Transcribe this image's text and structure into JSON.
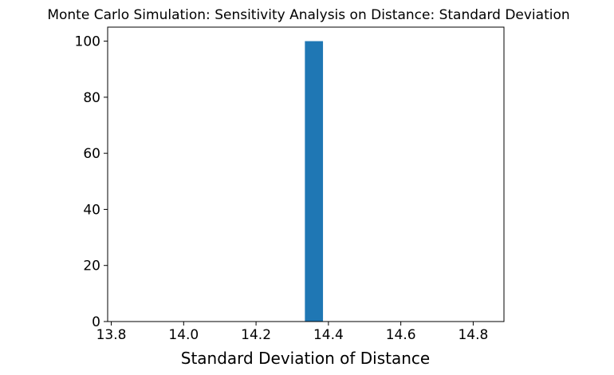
{
  "chart_data": {
    "type": "bar",
    "title": "Monte Carlo Simulation: Sensitivity Analysis on Distance: Standard Deviation",
    "xlabel": "Standard Deviation of Distance",
    "ylabel": "",
    "xlim": [
      13.79,
      14.885
    ],
    "ylim": [
      0,
      105
    ],
    "x_ticks": [
      {
        "value": 13.8,
        "label": "13.8"
      },
      {
        "value": 14.0,
        "label": "14.0"
      },
      {
        "value": 14.2,
        "label": "14.2"
      },
      {
        "value": 14.4,
        "label": "14.4"
      },
      {
        "value": 14.6,
        "label": "14.6"
      },
      {
        "value": 14.8,
        "label": "14.8"
      }
    ],
    "y_ticks": [
      {
        "value": 0,
        "label": "0"
      },
      {
        "value": 20,
        "label": "20"
      },
      {
        "value": 40,
        "label": "40"
      },
      {
        "value": 60,
        "label": "60"
      },
      {
        "value": 80,
        "label": "80"
      },
      {
        "value": 100,
        "label": "100"
      }
    ],
    "bars": [
      {
        "x_start": 14.335,
        "x_end": 14.385,
        "value": 100
      }
    ],
    "bar_color": "#1f77b4",
    "grid": false,
    "legend": "none"
  }
}
